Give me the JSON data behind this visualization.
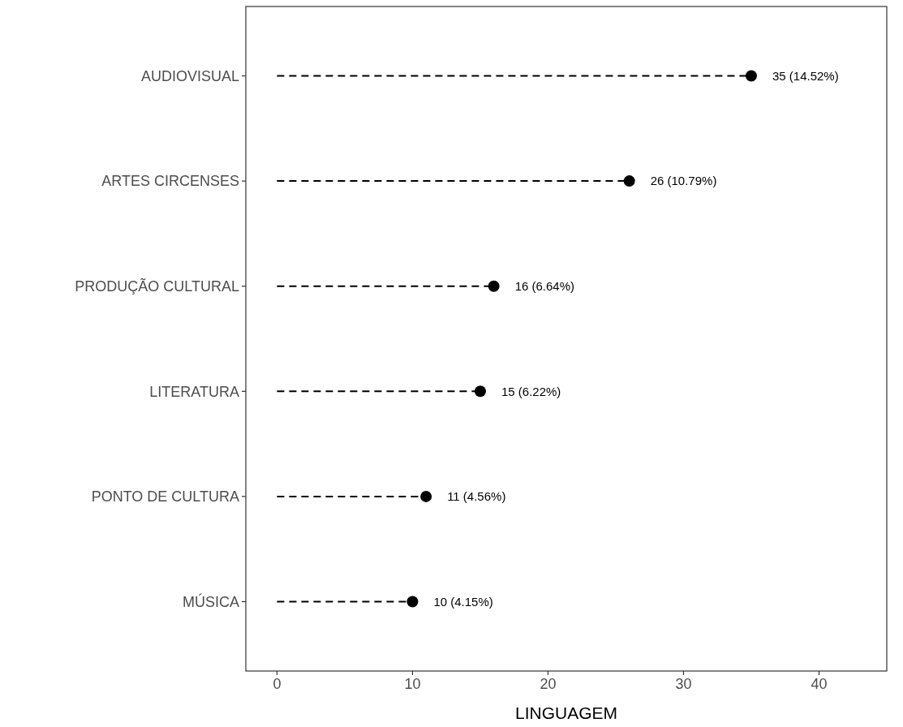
{
  "chart_data": {
    "type": "lollipop",
    "orientation": "horizontal",
    "xlabel": "LINGUAGEM",
    "categories": [
      "AUDIOVISUAL",
      "ARTES CIRCENSES",
      "PRODUÇÃO CULTURAL",
      "LITERATURA",
      "PONTO DE CULTURA",
      "MÚSICA"
    ],
    "values": [
      35,
      26,
      16,
      15,
      11,
      10
    ],
    "value_labels": [
      "35 (14.52%)",
      "26 (10.79%)",
      "16 (6.64%)",
      "15 (6.22%)",
      "11 (4.56%)",
      "10 (4.15%)"
    ],
    "color": "#000000",
    "marker": "circle",
    "line_style": "dashed",
    "xlim": [
      -2.3,
      45
    ],
    "xticks": [
      0,
      10,
      20,
      30,
      40
    ]
  }
}
